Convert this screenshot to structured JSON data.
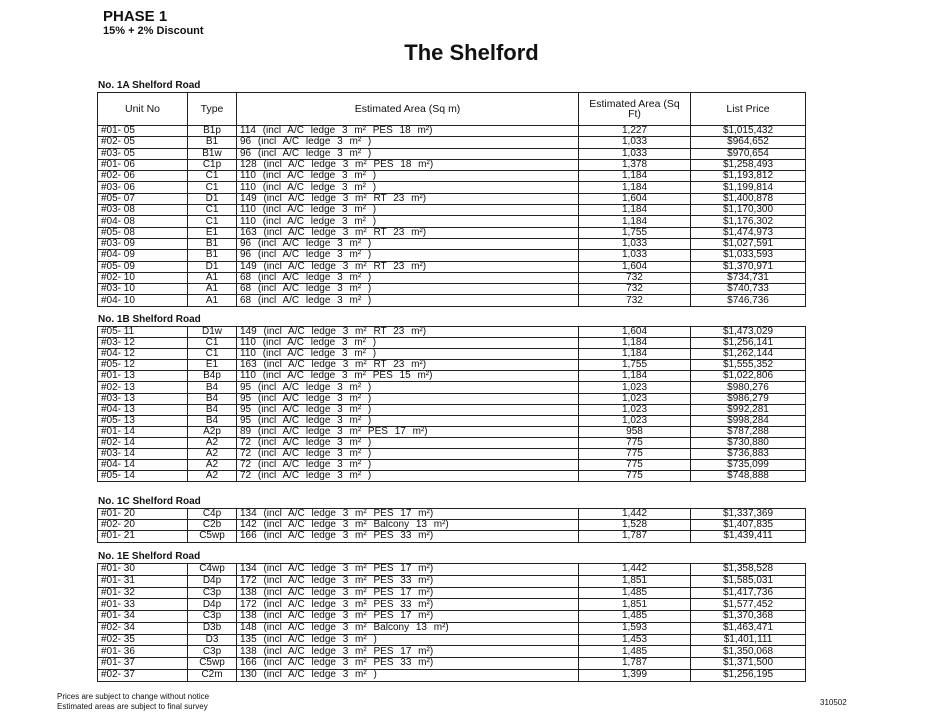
{
  "header": {
    "phase": "PHASE 1",
    "discount": "15% + 2% Discount",
    "title": "The Shelford"
  },
  "columns": [
    "Unit No",
    "Type",
    "Estimated Area (Sq m)",
    "Estimated Area (Sq Ft)",
    "List Price"
  ],
  "sections": [
    {
      "title": "No. 1A Shelford Road",
      "rows": [
        [
          "#01- 05",
          "B1p",
          "114 (incl A/C ledge 3 m² PES 18 m²)",
          "1,227",
          "$1,015,432"
        ],
        [
          "#02- 05",
          "B1",
          "96 (incl A/C ledge 3 m² )",
          "1,033",
          "$964,652"
        ],
        [
          "#03- 05",
          "B1w",
          "96 (incl A/C ledge 3 m² )",
          "1,033",
          "$970,654"
        ],
        [
          "#01- 06",
          "C1p",
          "128 (incl A/C ledge 3 m² PES 18 m²)",
          "1,378",
          "$1,258,493"
        ],
        [
          "#02- 06",
          "C1",
          "110 (incl A/C ledge 3 m² )",
          "1,184",
          "$1,193,812"
        ],
        [
          "#03- 06",
          "C1",
          "110 (incl A/C ledge 3 m² )",
          "1,184",
          "$1,199,814"
        ],
        [
          "#05- 07",
          "D1",
          "149 (incl A/C ledge 3 m² RT 23 m²)",
          "1,604",
          "$1,400,878"
        ],
        [
          "#03- 08",
          "C1",
          "110 (incl A/C ledge 3 m² )",
          "1,184",
          "$1,170,300"
        ],
        [
          "#04- 08",
          "C1",
          "110 (incl A/C ledge 3 m² )",
          "1,184",
          "$1,176,302"
        ],
        [
          "#05- 08",
          "E1",
          "163 (incl A/C ledge 3 m² RT 23 m²)",
          "1,755",
          "$1,474,973"
        ],
        [
          "#03- 09",
          "B1",
          "96 (incl A/C ledge 3 m² )",
          "1,033",
          "$1,027,591"
        ],
        [
          "#04- 09",
          "B1",
          "96 (incl A/C ledge 3 m² )",
          "1,033",
          "$1,033,593"
        ],
        [
          "#05- 09",
          "D1",
          "149 (incl A/C ledge 3 m² RT 23 m²)",
          "1,604",
          "$1,370,971"
        ],
        [
          "#02- 10",
          "A1",
          "68 (incl A/C ledge 3 m² )",
          "732",
          "$734,731"
        ],
        [
          "#03- 10",
          "A1",
          "68 (incl A/C ledge 3 m² )",
          "732",
          "$740,733"
        ],
        [
          "#04- 10",
          "A1",
          "68 (incl A/C ledge 3 m² )",
          "732",
          "$746,736"
        ]
      ]
    },
    {
      "title": "No. 1B Shelford Road",
      "rows": [
        [
          "#05- 11",
          "D1w",
          "149 (incl A/C ledge 3 m² RT 23 m²)",
          "1,604",
          "$1,473,029"
        ],
        [
          "#03- 12",
          "C1",
          "110 (incl A/C ledge 3 m² )",
          "1,184",
          "$1,256,141"
        ],
        [
          "#04- 12",
          "C1",
          "110 (incl A/C ledge 3 m² )",
          "1,184",
          "$1,262,144"
        ],
        [
          "#05- 12",
          "E1",
          "163 (incl A/C ledge 3 m² RT 23 m²)",
          "1,755",
          "$1,555,352"
        ],
        [
          "#01- 13",
          "B4p",
          "110 (incl A/C ledge 3 m² PES 15 m²)",
          "1,184",
          "$1,022,806"
        ],
        [
          "#02- 13",
          "B4",
          "95 (incl A/C ledge 3 m² )",
          "1,023",
          "$980,276"
        ],
        [
          "#03- 13",
          "B4",
          "95 (incl A/C ledge 3 m² )",
          "1,023",
          "$986,279"
        ],
        [
          "#04- 13",
          "B4",
          "95 (incl A/C ledge 3 m² )",
          "1,023",
          "$992,281"
        ],
        [
          "#05- 13",
          "B4",
          "95 (incl A/C ledge 3 m² )",
          "1,023",
          "$998,284"
        ],
        [
          "#01- 14",
          "A2p",
          "89 (incl A/C ledge 3 m² PES 17 m²)",
          "958",
          "$787,288"
        ],
        [
          "#02- 14",
          "A2",
          "72 (incl A/C ledge 3 m² )",
          "775",
          "$730,880"
        ],
        [
          "#03- 14",
          "A2",
          "72 (incl A/C ledge 3 m² )",
          "775",
          "$736,883"
        ],
        [
          "#04- 14",
          "A2",
          "72 (incl A/C ledge 3 m² )",
          "775",
          "$735,099"
        ],
        [
          "#05- 14",
          "A2",
          "72 (incl A/C ledge 3 m² )",
          "775",
          "$748,888"
        ]
      ]
    },
    {
      "title": "No. 1C Shelford Road",
      "rows": [
        [
          "#01- 20",
          "C4p",
          "134 (incl A/C ledge 3 m² PES 17 m²)",
          "1,442",
          "$1,337,369"
        ],
        [
          "#02- 20",
          "C2b",
          "142 (incl A/C ledge 3 m² Balcony 13 m²)",
          "1,528",
          "$1,407,835"
        ],
        [
          "#01- 21",
          "C5wp",
          "166 (incl A/C ledge 3 m² PES 33 m²)",
          "1,787",
          "$1,439,411"
        ]
      ]
    },
    {
      "title": "No. 1E Shelford Road",
      "rows": [
        [
          "#01- 30",
          "C4wp",
          "134 (incl A/C ledge 3 m² PES 17 m²)",
          "1,442",
          "$1,358,528"
        ],
        [
          "#01- 31",
          "D4p",
          "172 (incl A/C ledge 3 m² PES 33 m²)",
          "1,851",
          "$1,585,031"
        ],
        [
          "#01- 32",
          "C3p",
          "138 (incl A/C ledge 3 m² PES 17 m²)",
          "1,485",
          "$1,417,736"
        ],
        [
          "#01- 33",
          "D4p",
          "172 (incl A/C ledge 3 m² PES 33 m²)",
          "1,851",
          "$1,577,452"
        ],
        [
          "#01- 34",
          "C3p",
          "138 (incl A/C ledge 3 m² PES 17 m²)",
          "1,485",
          "$1,370,368"
        ],
        [
          "#02- 34",
          "D3b",
          "148 (incl A/C ledge 3 m² Balcony 13 m²)",
          "1,593",
          "$1,463,471"
        ],
        [
          "#02- 35",
          "D3",
          "135 (incl A/C ledge 3 m² )",
          "1,453",
          "$1,401,111"
        ],
        [
          "#01- 36",
          "C3p",
          "138 (incl A/C ledge 3 m² PES 17 m²)",
          "1,485",
          "$1,350,068"
        ],
        [
          "#01- 37",
          "C5wp",
          "166 (incl A/C ledge 3 m² PES 33 m²)",
          "1,787",
          "$1,371,500"
        ],
        [
          "#02- 37",
          "C2m",
          "130 (incl A/C ledge 3 m² )",
          "1,399",
          "$1,256,195"
        ]
      ]
    }
  ],
  "footer": {
    "notes": [
      "Prices are subject to change without notice",
      "Estimated areas are subject to final survey"
    ],
    "code": "310502"
  }
}
